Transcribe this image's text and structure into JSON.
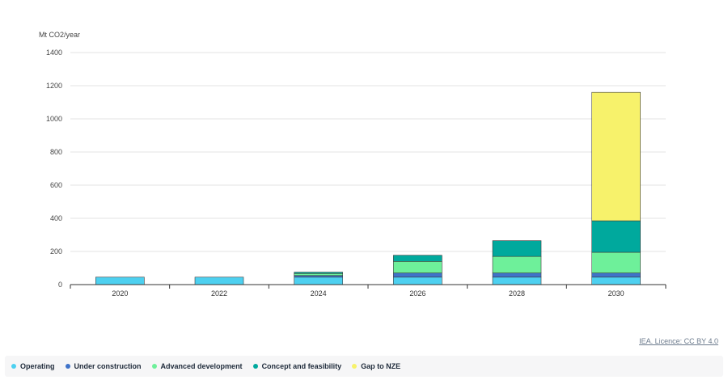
{
  "chart_data": {
    "type": "bar",
    "stacked": true,
    "ylabel": "Mt CO2/year",
    "ylim": [
      0,
      1400
    ],
    "yticks": [
      0,
      200,
      400,
      600,
      800,
      1000,
      1200,
      1400
    ],
    "categories": [
      "2020",
      "2022",
      "2024",
      "2026",
      "2028",
      "2030"
    ],
    "grid": true,
    "legend_position": "bottom",
    "series": [
      {
        "name": "Operating",
        "color": "#4dd0f0",
        "values": [
          45,
          45,
          45,
          45,
          45,
          45
        ]
      },
      {
        "name": "Under construction",
        "color": "#3f73c9",
        "values": [
          0,
          0,
          10,
          25,
          25,
          25
        ]
      },
      {
        "name": "Advanced development",
        "color": "#6ef09a",
        "values": [
          0,
          0,
          12,
          70,
          100,
          125
        ]
      },
      {
        "name": "Concept and feasibility",
        "color": "#00a99d",
        "values": [
          0,
          0,
          8,
          37,
          95,
          190
        ]
      },
      {
        "name": "Gap to NZE",
        "color": "#f7f26b",
        "values": [
          0,
          0,
          0,
          0,
          0,
          775
        ]
      }
    ]
  },
  "credit": "IEA. Licence: CC BY 4.0"
}
